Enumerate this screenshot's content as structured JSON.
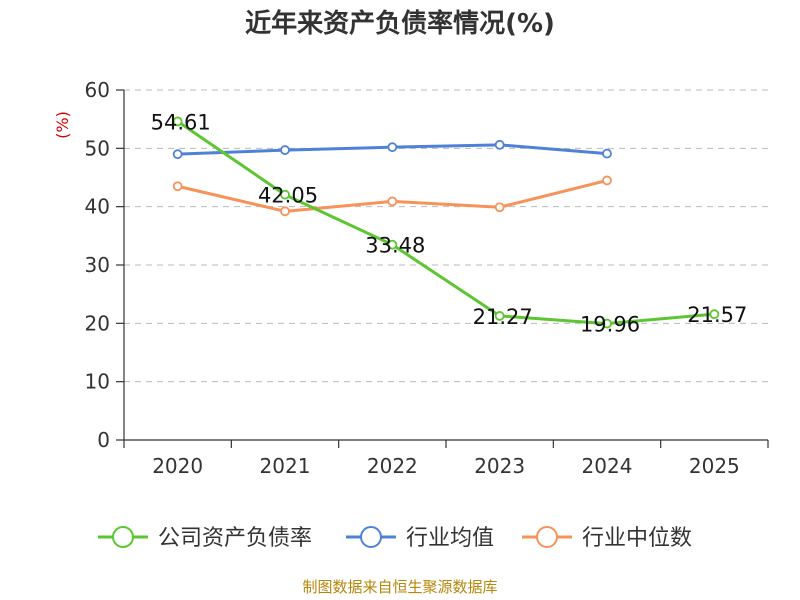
{
  "chart_data": {
    "type": "line",
    "title": "近年来资产负债率情况(%)",
    "y_unit": "(%)",
    "categories": [
      "2020",
      "2021",
      "2022",
      "2023",
      "2024",
      "2025"
    ],
    "ylim": [
      0,
      60
    ],
    "yticks": [
      0,
      10,
      20,
      30,
      40,
      50,
      60
    ],
    "grid": true,
    "legend_position": "bottom",
    "series": [
      {
        "name": "公司资产负债率",
        "color": "#5cc630",
        "values": [
          54.61,
          42.05,
          33.48,
          21.27,
          19.96,
          21.57
        ],
        "labels": [
          "54.61",
          "42.05",
          "33.48",
          "21.27",
          "19.96",
          "21.57"
        ]
      },
      {
        "name": "行业均值",
        "color": "#4f81d9",
        "values": [
          49.0,
          49.7,
          50.2,
          50.6,
          49.1,
          null
        ]
      },
      {
        "name": "行业中位数",
        "color": "#f79259",
        "values": [
          43.5,
          39.2,
          40.9,
          39.9,
          44.5,
          null
        ]
      }
    ]
  },
  "source": "制图数据来自恒生聚源数据库"
}
